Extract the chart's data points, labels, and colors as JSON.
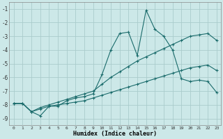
{
  "xlabel": "Humidex (Indice chaleur)",
  "background_color": "#cce8e8",
  "grid_color": "#aacccc",
  "line_color": "#1a6b6b",
  "xlim": [
    -0.5,
    23.5
  ],
  "ylim": [
    -9.5,
    -0.5
  ],
  "yticks": [
    -1,
    -2,
    -3,
    -4,
    -5,
    -6,
    -7,
    -8,
    -9
  ],
  "xticks": [
    0,
    1,
    2,
    3,
    4,
    5,
    6,
    7,
    8,
    9,
    10,
    11,
    12,
    13,
    14,
    15,
    16,
    17,
    18,
    19,
    20,
    21,
    22,
    23
  ],
  "line1_x": [
    0,
    1,
    2,
    3,
    4,
    5,
    6,
    7,
    8,
    9,
    10,
    11,
    12,
    13,
    14,
    15,
    16,
    17,
    18,
    19,
    20,
    21,
    22,
    23
  ],
  "line1_y": [
    -7.9,
    -7.9,
    -8.5,
    -8.8,
    -8.1,
    -8.1,
    -7.7,
    -7.5,
    -7.4,
    -7.2,
    -5.8,
    -4.0,
    -2.8,
    -2.7,
    -4.4,
    -1.1,
    -2.5,
    -3.0,
    -4.0,
    -6.1,
    -6.3,
    -6.2,
    -6.3,
    -7.1
  ],
  "line2_x": [
    0,
    1,
    2,
    3,
    4,
    5,
    6,
    7,
    8,
    9,
    10,
    11,
    12,
    13,
    14,
    15,
    16,
    17,
    18,
    19,
    20,
    21,
    22,
    23
  ],
  "line2_y": [
    -7.9,
    -7.9,
    -8.5,
    -8.2,
    -8.0,
    -7.8,
    -7.6,
    -7.4,
    -7.2,
    -7.0,
    -6.5,
    -6.0,
    -5.6,
    -5.2,
    -4.8,
    -4.5,
    -4.2,
    -3.9,
    -3.6,
    -3.3,
    -3.0,
    -2.9,
    -2.8,
    -3.3
  ],
  "line3_x": [
    0,
    1,
    2,
    3,
    4,
    5,
    6,
    7,
    8,
    9,
    10,
    11,
    12,
    13,
    14,
    15,
    16,
    17,
    18,
    19,
    20,
    21,
    22,
    23
  ],
  "line3_y": [
    -7.9,
    -7.9,
    -8.5,
    -8.3,
    -8.1,
    -8.0,
    -7.9,
    -7.8,
    -7.7,
    -7.5,
    -7.3,
    -7.1,
    -6.9,
    -6.7,
    -6.5,
    -6.3,
    -6.1,
    -5.9,
    -5.7,
    -5.5,
    -5.3,
    -5.2,
    -5.1,
    -5.5
  ]
}
